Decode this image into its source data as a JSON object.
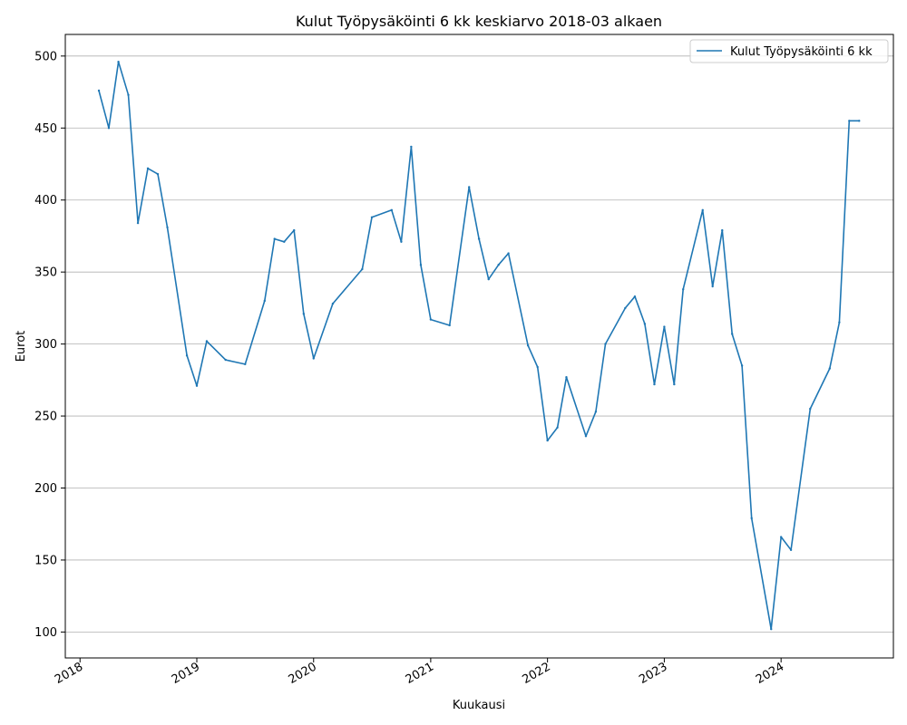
{
  "chart_data": {
    "type": "line",
    "title": "Kulut Työpysäköinti 6 kk keskiarvo 2018-03 alkaen",
    "xlabel": "Kuukausi",
    "ylabel": "Eurot",
    "x_tick_labels": [
      "2018",
      "2019",
      "2020",
      "2021",
      "2022",
      "2023",
      "2024"
    ],
    "y_tick_labels": [
      "100",
      "150",
      "200",
      "250",
      "300",
      "350",
      "400",
      "450",
      "500"
    ],
    "y_ticks": [
      100,
      150,
      200,
      250,
      300,
      350,
      400,
      450,
      500
    ],
    "ylim": [
      82,
      515
    ],
    "xlim": [
      "2017-11-16",
      "2024-12-17"
    ],
    "grid": "horizontal",
    "legend_position": "top-right",
    "series": [
      {
        "name": "Kulut Työpysäköinti 6 kk",
        "color": "#1f77b4",
        "points": [
          [
            "2018-03-01",
            476
          ],
          [
            "2018-04-01",
            450
          ],
          [
            "2018-05-01",
            496
          ],
          [
            "2018-06-01",
            473
          ],
          [
            "2018-07-01",
            384
          ],
          [
            "2018-08-01",
            422
          ],
          [
            "2018-09-01",
            418
          ],
          [
            "2018-10-01",
            381
          ],
          [
            "2018-12-01",
            292
          ],
          [
            "2019-01-01",
            271
          ],
          [
            "2019-02-01",
            302
          ],
          [
            "2019-04-01",
            289
          ],
          [
            "2019-06-01",
            286
          ],
          [
            "2019-08-01",
            330
          ],
          [
            "2019-09-01",
            373
          ],
          [
            "2019-10-01",
            371
          ],
          [
            "2019-11-01",
            379
          ],
          [
            "2019-12-01",
            321
          ],
          [
            "2020-01-01",
            290
          ],
          [
            "2020-03-01",
            328
          ],
          [
            "2020-06-01",
            352
          ],
          [
            "2020-07-01",
            388
          ],
          [
            "2020-09-01",
            393
          ],
          [
            "2020-10-01",
            371
          ],
          [
            "2020-11-01",
            437
          ],
          [
            "2020-12-01",
            355
          ],
          [
            "2021-01-01",
            317
          ],
          [
            "2021-03-01",
            313
          ],
          [
            "2021-05-01",
            409
          ],
          [
            "2021-06-01",
            373
          ],
          [
            "2021-07-01",
            345
          ],
          [
            "2021-08-01",
            355
          ],
          [
            "2021-09-01",
            363
          ],
          [
            "2021-11-01",
            299
          ],
          [
            "2021-12-01",
            284
          ],
          [
            "2022-01-01",
            233
          ],
          [
            "2022-02-01",
            242
          ],
          [
            "2022-03-01",
            277
          ],
          [
            "2022-05-01",
            236
          ],
          [
            "2022-06-01",
            253
          ],
          [
            "2022-07-01",
            300
          ],
          [
            "2022-09-01",
            325
          ],
          [
            "2022-10-01",
            333
          ],
          [
            "2022-11-01",
            314
          ],
          [
            "2022-12-01",
            272
          ],
          [
            "2023-01-01",
            312
          ],
          [
            "2023-02-01",
            272
          ],
          [
            "2023-03-01",
            338
          ],
          [
            "2023-05-01",
            393
          ],
          [
            "2023-06-01",
            340
          ],
          [
            "2023-07-01",
            379
          ],
          [
            "2023-08-01",
            307
          ],
          [
            "2023-09-01",
            285
          ],
          [
            "2023-10-01",
            179
          ],
          [
            "2023-12-01",
            102
          ],
          [
            "2024-01-01",
            166
          ],
          [
            "2024-02-01",
            157
          ],
          [
            "2024-04-01",
            255
          ],
          [
            "2024-06-01",
            283
          ],
          [
            "2024-07-01",
            315
          ],
          [
            "2024-08-01",
            455
          ],
          [
            "2024-09-01",
            455
          ]
        ]
      }
    ]
  }
}
